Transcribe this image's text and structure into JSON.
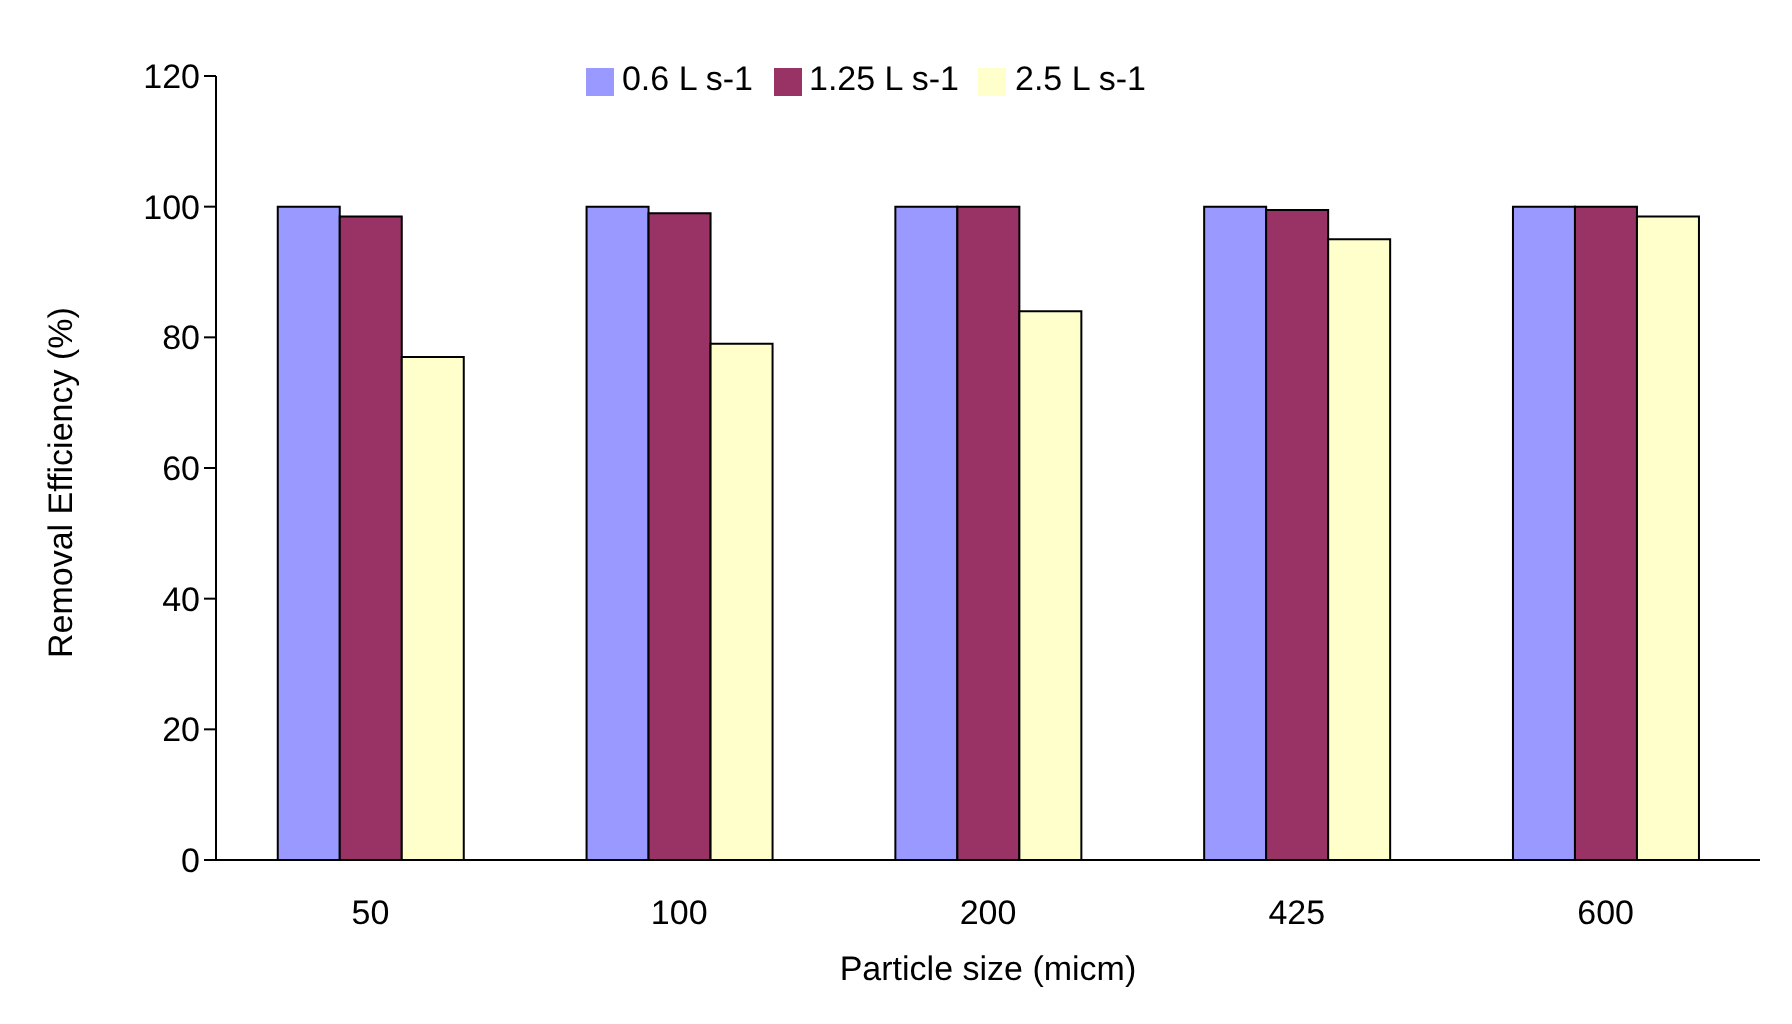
{
  "chart_data": {
    "type": "bar",
    "xlabel": "Particle size (micm)",
    "ylabel": "Removal Efficiency (%)",
    "categories": [
      "50",
      "100",
      "200",
      "425",
      "600"
    ],
    "series": [
      {
        "name": "0.6 L s-1",
        "color": "#9999ff",
        "values": [
          100,
          100,
          100,
          100,
          100
        ]
      },
      {
        "name": "1.25 L s-1",
        "color": "#993366",
        "values": [
          98.5,
          99,
          100,
          99.5,
          100
        ]
      },
      {
        "name": "2.5 L s-1",
        "color": "#ffffcc",
        "values": [
          77,
          79,
          84,
          95,
          98.5
        ]
      }
    ],
    "ylim": [
      0,
      120
    ],
    "yticks": [
      0,
      20,
      40,
      60,
      80,
      100,
      120
    ],
    "grid": false,
    "legend": "top"
  }
}
